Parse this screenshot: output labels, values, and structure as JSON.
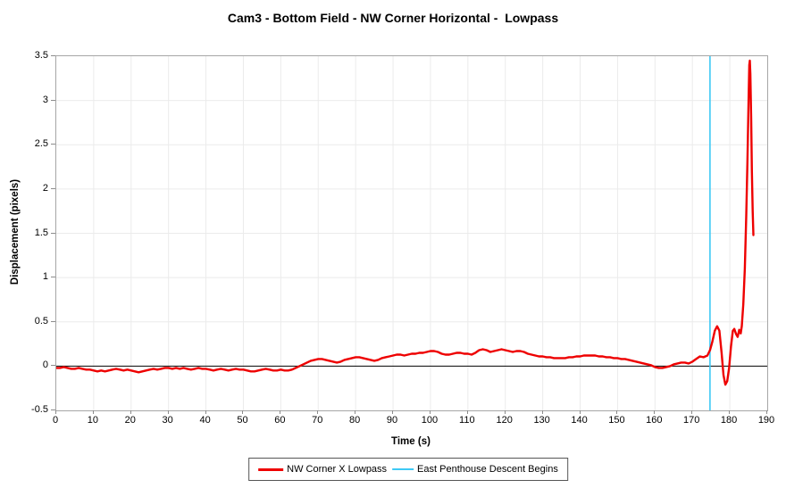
{
  "chart": {
    "title": "Cam3 - Bottom Field - NW Corner Horizontal -  Lowpass",
    "xlabel": "Time (s)",
    "ylabel": "Displacement (pixels)"
  },
  "colors": {
    "series": "#ee0000",
    "event": "#3ec9f5",
    "zero_line": "#000000",
    "grid": "#ebebeb",
    "border": "#a6a6a6",
    "tick": "#8c8c8c"
  },
  "chart_data": {
    "type": "line",
    "title": "Cam3 - Bottom Field - NW Corner Horizontal -  Lowpass",
    "xlabel": "Time (s)",
    "ylabel": "Displacement (pixels)",
    "xlim": [
      0,
      190
    ],
    "ylim": [
      -0.5,
      3.5
    ],
    "x_ticks": [
      0,
      10,
      20,
      30,
      40,
      50,
      60,
      70,
      80,
      90,
      100,
      110,
      120,
      130,
      140,
      150,
      160,
      170,
      180,
      190
    ],
    "x_tick_labels": [
      "0",
      "10",
      "20",
      "30",
      "40",
      "50",
      "60",
      "70",
      "80",
      "90",
      "100",
      "110",
      "120",
      "130",
      "140",
      "150",
      "160",
      "170",
      "180",
      "190"
    ],
    "y_ticks": [
      -0.5,
      0,
      0.5,
      1,
      1.5,
      2,
      2.5,
      3,
      3.5
    ],
    "y_tick_labels": [
      "-0.5",
      "0",
      "0.5",
      "1",
      "1.5",
      "2",
      "2.5",
      "3",
      "3.5"
    ],
    "grid": true,
    "zero_line": true,
    "legend_position": "bottom-center",
    "series": [
      {
        "name": "NW Corner X Lowpass",
        "type": "line",
        "color": "#ee0000",
        "points": [
          [
            0,
            -0.02
          ],
          [
            1,
            -0.02
          ],
          [
            2,
            -0.01
          ],
          [
            3,
            -0.02
          ],
          [
            4,
            -0.03
          ],
          [
            5,
            -0.03
          ],
          [
            6,
            -0.02
          ],
          [
            7,
            -0.03
          ],
          [
            8,
            -0.04
          ],
          [
            9,
            -0.04
          ],
          [
            10,
            -0.05
          ],
          [
            11,
            -0.06
          ],
          [
            12,
            -0.05
          ],
          [
            13,
            -0.06
          ],
          [
            14,
            -0.05
          ],
          [
            15,
            -0.04
          ],
          [
            16,
            -0.03
          ],
          [
            17,
            -0.04
          ],
          [
            18,
            -0.05
          ],
          [
            19,
            -0.04
          ],
          [
            20,
            -0.05
          ],
          [
            21,
            -0.06
          ],
          [
            22,
            -0.07
          ],
          [
            23,
            -0.06
          ],
          [
            24,
            -0.05
          ],
          [
            25,
            -0.04
          ],
          [
            26,
            -0.03
          ],
          [
            27,
            -0.04
          ],
          [
            28,
            -0.03
          ],
          [
            29,
            -0.02
          ],
          [
            30,
            -0.02
          ],
          [
            31,
            -0.03
          ],
          [
            32,
            -0.02
          ],
          [
            33,
            -0.03
          ],
          [
            34,
            -0.02
          ],
          [
            35,
            -0.03
          ],
          [
            36,
            -0.04
          ],
          [
            37,
            -0.03
          ],
          [
            38,
            -0.02
          ],
          [
            39,
            -0.03
          ],
          [
            40,
            -0.03
          ],
          [
            41,
            -0.04
          ],
          [
            42,
            -0.05
          ],
          [
            43,
            -0.04
          ],
          [
            44,
            -0.03
          ],
          [
            45,
            -0.04
          ],
          [
            46,
            -0.05
          ],
          [
            47,
            -0.04
          ],
          [
            48,
            -0.03
          ],
          [
            49,
            -0.04
          ],
          [
            50,
            -0.04
          ],
          [
            51,
            -0.05
          ],
          [
            52,
            -0.06
          ],
          [
            53,
            -0.06
          ],
          [
            54,
            -0.05
          ],
          [
            55,
            -0.04
          ],
          [
            56,
            -0.03
          ],
          [
            57,
            -0.04
          ],
          [
            58,
            -0.05
          ],
          [
            59,
            -0.05
          ],
          [
            60,
            -0.04
          ],
          [
            61,
            -0.05
          ],
          [
            62,
            -0.05
          ],
          [
            63,
            -0.04
          ],
          [
            64,
            -0.02
          ],
          [
            65,
            0.0
          ],
          [
            66,
            0.02
          ],
          [
            67,
            0.04
          ],
          [
            68,
            0.06
          ],
          [
            69,
            0.07
          ],
          [
            70,
            0.08
          ],
          [
            71,
            0.08
          ],
          [
            72,
            0.07
          ],
          [
            73,
            0.06
          ],
          [
            74,
            0.05
          ],
          [
            75,
            0.04
          ],
          [
            76,
            0.05
          ],
          [
            77,
            0.07
          ],
          [
            78,
            0.08
          ],
          [
            79,
            0.09
          ],
          [
            80,
            0.1
          ],
          [
            81,
            0.1
          ],
          [
            82,
            0.09
          ],
          [
            83,
            0.08
          ],
          [
            84,
            0.07
          ],
          [
            85,
            0.06
          ],
          [
            86,
            0.07
          ],
          [
            87,
            0.09
          ],
          [
            88,
            0.1
          ],
          [
            89,
            0.11
          ],
          [
            90,
            0.12
          ],
          [
            91,
            0.13
          ],
          [
            92,
            0.13
          ],
          [
            93,
            0.12
          ],
          [
            94,
            0.13
          ],
          [
            95,
            0.14
          ],
          [
            96,
            0.14
          ],
          [
            97,
            0.15
          ],
          [
            98,
            0.15
          ],
          [
            99,
            0.16
          ],
          [
            100,
            0.17
          ],
          [
            101,
            0.17
          ],
          [
            102,
            0.16
          ],
          [
            103,
            0.14
          ],
          [
            104,
            0.13
          ],
          [
            105,
            0.13
          ],
          [
            106,
            0.14
          ],
          [
            107,
            0.15
          ],
          [
            108,
            0.15
          ],
          [
            109,
            0.14
          ],
          [
            110,
            0.14
          ],
          [
            111,
            0.13
          ],
          [
            112,
            0.15
          ],
          [
            113,
            0.18
          ],
          [
            114,
            0.19
          ],
          [
            115,
            0.18
          ],
          [
            116,
            0.16
          ],
          [
            117,
            0.17
          ],
          [
            118,
            0.18
          ],
          [
            119,
            0.19
          ],
          [
            120,
            0.18
          ],
          [
            121,
            0.17
          ],
          [
            122,
            0.16
          ],
          [
            123,
            0.17
          ],
          [
            124,
            0.17
          ],
          [
            125,
            0.16
          ],
          [
            126,
            0.14
          ],
          [
            127,
            0.13
          ],
          [
            128,
            0.12
          ],
          [
            129,
            0.11
          ],
          [
            130,
            0.11
          ],
          [
            131,
            0.1
          ],
          [
            132,
            0.1
          ],
          [
            133,
            0.09
          ],
          [
            134,
            0.09
          ],
          [
            135,
            0.09
          ],
          [
            136,
            0.09
          ],
          [
            137,
            0.1
          ],
          [
            138,
            0.1
          ],
          [
            139,
            0.11
          ],
          [
            140,
            0.11
          ],
          [
            141,
            0.12
          ],
          [
            142,
            0.12
          ],
          [
            143,
            0.12
          ],
          [
            144,
            0.12
          ],
          [
            145,
            0.11
          ],
          [
            146,
            0.11
          ],
          [
            147,
            0.1
          ],
          [
            148,
            0.1
          ],
          [
            149,
            0.09
          ],
          [
            150,
            0.09
          ],
          [
            151,
            0.08
          ],
          [
            152,
            0.08
          ],
          [
            153,
            0.07
          ],
          [
            154,
            0.06
          ],
          [
            155,
            0.05
          ],
          [
            156,
            0.04
          ],
          [
            157,
            0.03
          ],
          [
            158,
            0.02
          ],
          [
            159,
            0.01
          ],
          [
            160,
            -0.01
          ],
          [
            161,
            -0.02
          ],
          [
            162,
            -0.02
          ],
          [
            163,
            -0.01
          ],
          [
            164,
            0.0
          ],
          [
            165,
            0.02
          ],
          [
            166,
            0.03
          ],
          [
            167,
            0.04
          ],
          [
            168,
            0.04
          ],
          [
            169,
            0.03
          ],
          [
            170,
            0.05
          ],
          [
            171,
            0.08
          ],
          [
            172,
            0.11
          ],
          [
            173,
            0.1
          ],
          [
            174,
            0.12
          ],
          [
            174.7,
            0.18
          ],
          [
            175.3,
            0.27
          ],
          [
            176,
            0.4
          ],
          [
            176.6,
            0.45
          ],
          [
            177.2,
            0.4
          ],
          [
            177.8,
            0.15
          ],
          [
            178.3,
            -0.1
          ],
          [
            178.8,
            -0.21
          ],
          [
            179.3,
            -0.17
          ],
          [
            179.8,
            -0.02
          ],
          [
            180.3,
            0.22
          ],
          [
            180.8,
            0.4
          ],
          [
            181.2,
            0.42
          ],
          [
            181.7,
            0.36
          ],
          [
            182.1,
            0.33
          ],
          [
            182.5,
            0.41
          ],
          [
            182.9,
            0.37
          ],
          [
            183.2,
            0.45
          ],
          [
            183.6,
            0.7
          ],
          [
            184.0,
            1.1
          ],
          [
            184.4,
            1.7
          ],
          [
            184.7,
            2.3
          ],
          [
            185.0,
            3.0
          ],
          [
            185.2,
            3.4
          ],
          [
            185.35,
            3.45
          ],
          [
            185.5,
            3.3
          ],
          [
            185.7,
            2.8
          ],
          [
            185.9,
            2.2
          ],
          [
            186.1,
            1.75
          ],
          [
            186.3,
            1.48
          ]
        ]
      },
      {
        "name": "East Penthouse Descent Begins",
        "type": "vline",
        "color": "#3ec9f5",
        "x": 174.7
      }
    ]
  }
}
